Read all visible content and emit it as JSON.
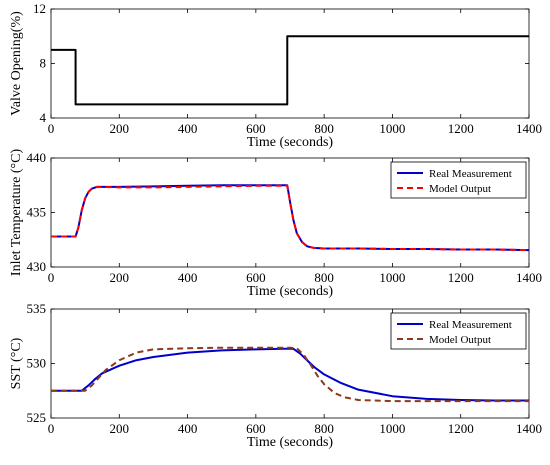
{
  "chart_data": [
    {
      "type": "line",
      "xlabel": "Time (seconds)",
      "ylabel": "Valve Opening(%)",
      "xlim": [
        0,
        1400
      ],
      "ylim": [
        4,
        12
      ],
      "xticks": [
        0,
        200,
        400,
        600,
        800,
        1000,
        1200,
        1400
      ],
      "yticks": [
        4,
        8,
        12
      ],
      "grid": false,
      "legend": null,
      "series": [
        {
          "color": "#000000",
          "style": "solid",
          "x": [
            0,
            72,
            72,
            692,
            692,
            1400
          ],
          "y": [
            9,
            9,
            5,
            5,
            10,
            10
          ]
        }
      ]
    },
    {
      "type": "line",
      "xlabel": "Time (seconds)",
      "ylabel": "Inlet Temperature (°C)",
      "xlim": [
        0,
        1400
      ],
      "ylim": [
        430,
        440
      ],
      "xticks": [
        0,
        200,
        400,
        600,
        800,
        1000,
        1200,
        1400
      ],
      "yticks": [
        430,
        435,
        440
      ],
      "grid": false,
      "legend": "top-right",
      "series": [
        {
          "name": "Real Measurement",
          "color": "#0000cc",
          "style": "solid",
          "x": [
            0,
            72,
            80,
            90,
            100,
            110,
            120,
            135,
            150,
            200,
            300,
            400,
            500,
            600,
            680,
            692,
            700,
            710,
            720,
            735,
            750,
            770,
            800,
            900,
            1000,
            1100,
            1200,
            1300,
            1400
          ],
          "y": [
            432.8,
            432.8,
            433.6,
            435.2,
            436.3,
            436.9,
            437.2,
            437.35,
            437.35,
            437.35,
            437.4,
            437.45,
            437.5,
            437.5,
            437.5,
            437.5,
            436.0,
            434.3,
            433.1,
            432.3,
            431.9,
            431.75,
            431.7,
            431.7,
            431.65,
            431.65,
            431.6,
            431.6,
            431.55
          ]
        },
        {
          "name": "Model Output",
          "color": "#ff0000",
          "style": "dashed",
          "x": [
            0,
            72,
            80,
            90,
            100,
            110,
            120,
            135,
            150,
            200,
            300,
            400,
            500,
            600,
            680,
            692,
            700,
            710,
            720,
            735,
            750,
            770,
            800,
            900,
            1000,
            1100,
            1200,
            1300,
            1400
          ],
          "y": [
            432.8,
            432.8,
            433.6,
            435.2,
            436.3,
            436.9,
            437.2,
            437.35,
            437.35,
            437.3,
            437.3,
            437.35,
            437.4,
            437.45,
            437.45,
            437.45,
            436.0,
            434.3,
            433.1,
            432.3,
            431.9,
            431.75,
            431.7,
            431.7,
            431.65,
            431.65,
            431.6,
            431.6,
            431.55
          ]
        }
      ]
    },
    {
      "type": "line",
      "xlabel": "Time (seconds)",
      "ylabel": "SST (°C)",
      "xlim": [
        0,
        1400
      ],
      "ylim": [
        525,
        535
      ],
      "xticks": [
        0,
        200,
        400,
        600,
        800,
        1000,
        1200,
        1400
      ],
      "yticks": [
        525,
        530,
        535
      ],
      "grid": false,
      "legend": "top-right",
      "series": [
        {
          "name": "Real Measurement",
          "color": "#0000cc",
          "style": "solid",
          "x": [
            0,
            90,
            110,
            130,
            150,
            200,
            250,
            300,
            400,
            500,
            600,
            680,
            710,
            730,
            750,
            770,
            800,
            850,
            900,
            1000,
            1100,
            1200,
            1300,
            1400
          ],
          "y": [
            527.5,
            527.5,
            528.0,
            528.6,
            529.1,
            529.8,
            530.3,
            530.6,
            531.0,
            531.2,
            531.3,
            531.35,
            531.35,
            530.9,
            530.3,
            529.7,
            529.0,
            528.2,
            527.6,
            527.0,
            526.75,
            526.65,
            526.6,
            526.6
          ]
        },
        {
          "name": "Model Output",
          "color": "#8b3a1a",
          "style": "dashed",
          "x": [
            0,
            100,
            120,
            140,
            160,
            200,
            250,
            300,
            400,
            500,
            600,
            700,
            720,
            740,
            760,
            780,
            800,
            830,
            860,
            900,
            1000,
            1100,
            1200,
            1300,
            1400
          ],
          "y": [
            527.5,
            527.5,
            528.0,
            528.7,
            529.4,
            530.3,
            531.0,
            531.3,
            531.4,
            531.45,
            531.45,
            531.45,
            531.4,
            530.8,
            529.9,
            528.9,
            528.1,
            527.3,
            526.9,
            526.65,
            526.55,
            526.55,
            526.55,
            526.55,
            526.55
          ]
        }
      ]
    }
  ]
}
